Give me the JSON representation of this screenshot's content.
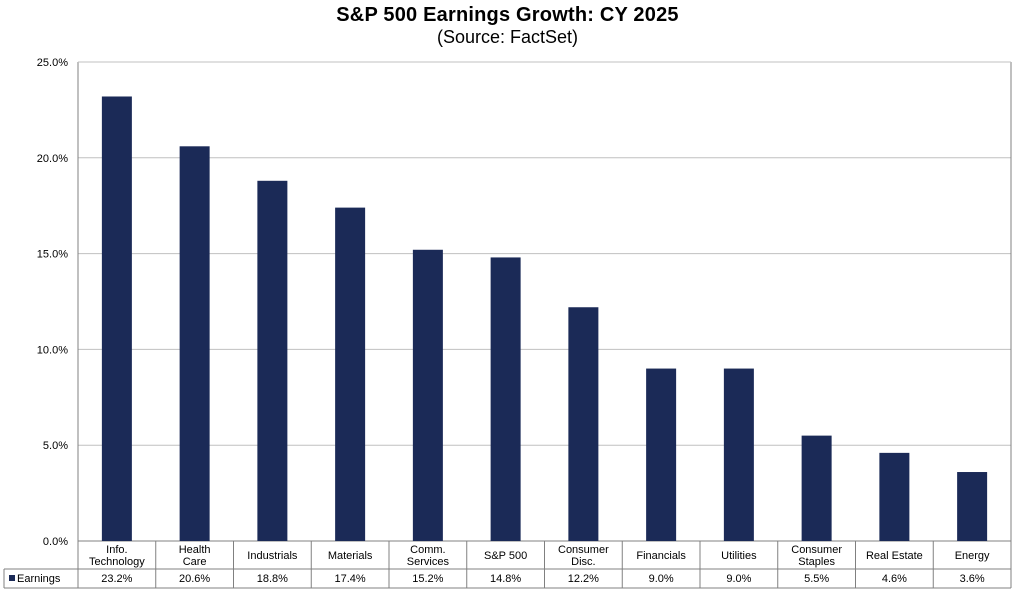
{
  "chart_data": {
    "type": "bar",
    "title": "S&P 500 Earnings Growth: CY 2025",
    "subtitle": "(Source: FactSet)",
    "categories": [
      [
        "Info.",
        "Technology"
      ],
      [
        "Health",
        "Care"
      ],
      [
        "Industrials"
      ],
      [
        "Materials"
      ],
      [
        "Comm.",
        "Services"
      ],
      [
        "S&P 500"
      ],
      [
        "Consumer",
        "Disc."
      ],
      [
        "Financials"
      ],
      [
        "Utilities"
      ],
      [
        "Consumer",
        "Staples"
      ],
      [
        "Real Estate"
      ],
      [
        "Energy"
      ]
    ],
    "series": [
      {
        "name": "Earnings",
        "values": [
          23.2,
          20.6,
          18.8,
          17.4,
          15.2,
          14.8,
          12.2,
          9.0,
          9.0,
          5.5,
          4.6,
          3.6
        ],
        "value_labels": [
          "23.2%",
          "20.6%",
          "18.8%",
          "17.4%",
          "15.2%",
          "14.8%",
          "12.2%",
          "9.0%",
          "9.0%",
          "5.5%",
          "4.6%",
          "3.6%"
        ],
        "color": "#1B2A57"
      }
    ],
    "ylim": [
      0,
      25
    ],
    "yticks": [
      0,
      5,
      10,
      15,
      20,
      25
    ],
    "ytick_labels": [
      "0.0%",
      "5.0%",
      "10.0%",
      "15.0%",
      "20.0%",
      "25.0%"
    ],
    "grid": true,
    "gridline_color": "#C0C0C0",
    "legend_placement": "data-table-left",
    "xlabel": "",
    "ylabel": ""
  }
}
